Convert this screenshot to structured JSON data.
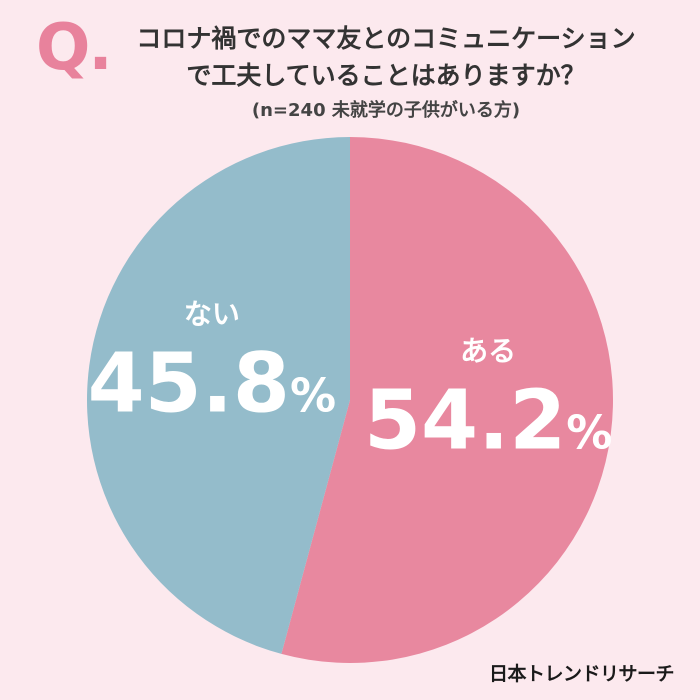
{
  "header": {
    "q_mark": "Q.",
    "question_line1": "コロナ禍でのママ友とのコミュニケーション",
    "question_line2": "で工夫していることはありますか？",
    "sample_note": "(n=240 未就学の子供がいる方)"
  },
  "brand": "日本トレンドリサーチ",
  "colors": {
    "background": "#fce9ee",
    "yes": "#e8889f",
    "no": "#94bccb",
    "accent": "#e8829c",
    "label": "#ffffff"
  },
  "chart_data": {
    "type": "pie",
    "title": "コロナ禍でのママ友とのコミュニケーションで工夫していることはありますか？",
    "subtitle": "(n=240 未就学の子供がいる方)",
    "slices": [
      {
        "label": "ある",
        "value": 54.2,
        "display": "54.2%"
      },
      {
        "label": "ない",
        "value": 45.8,
        "display": "45.8%"
      }
    ]
  }
}
